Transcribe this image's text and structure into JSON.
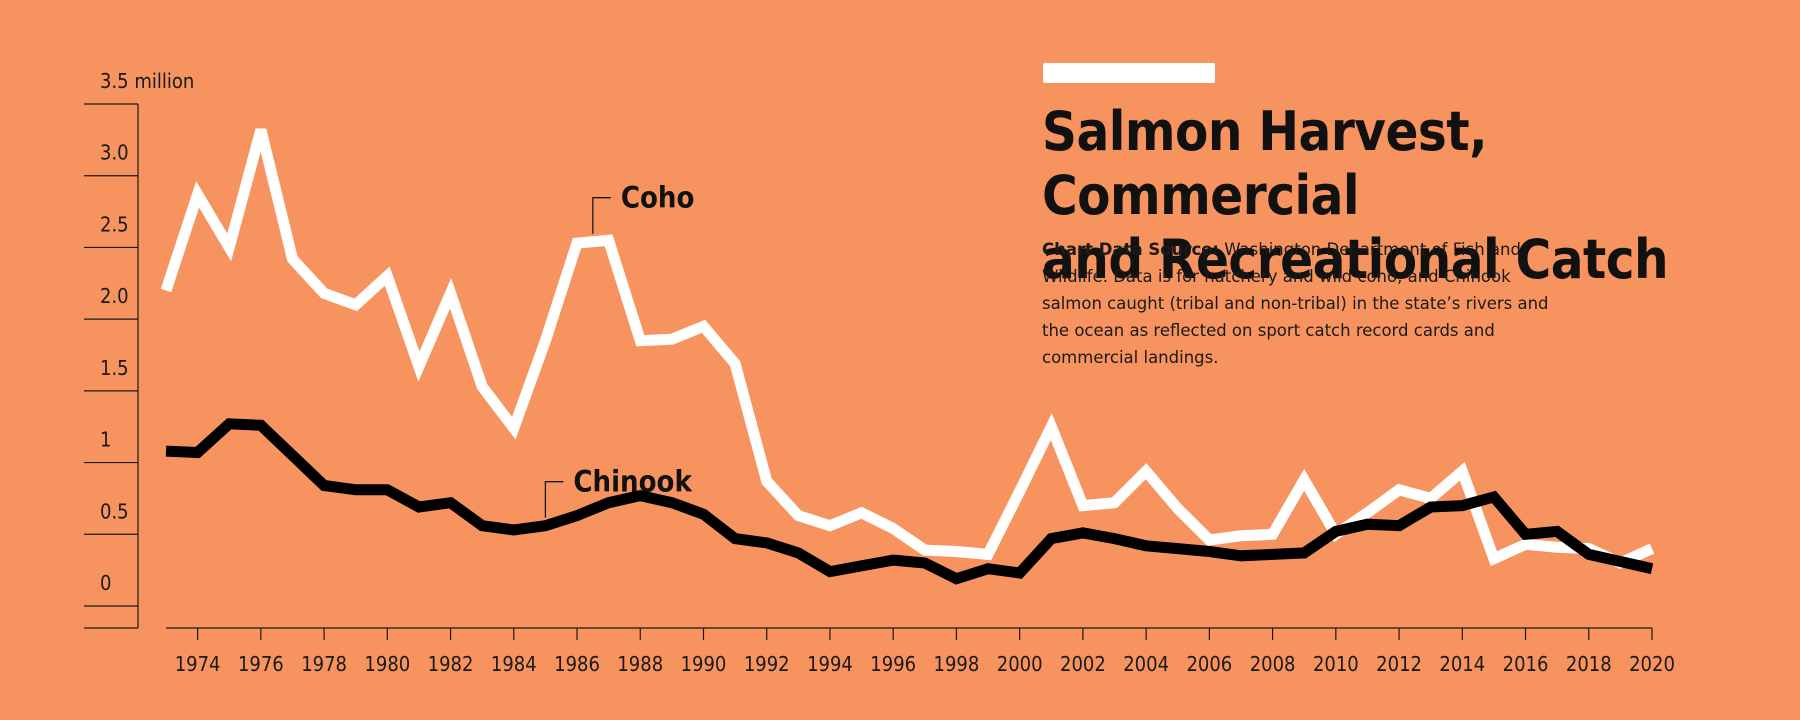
{
  "header": {
    "title_line1": "Salmon Harvest, Commercial",
    "title_line2": "and Recreational Catch",
    "source_label": "Chart Data Source:",
    "source_text": "Washington Department of Fish and Wildlife. Data is for hatchery and wild coho, and Chinook salmon caught (tribal and non-tribal) in the state’s rivers and the ocean as reflected on sport catch record cards and commercial landings."
  },
  "colors": {
    "background": "#F7935E",
    "coho": "#FFFFFF",
    "chinook": "#000000",
    "title_bar": "#FFFFFF"
  },
  "chart_data": {
    "type": "line",
    "title": "Salmon Harvest, Commercial and Recreational Catch",
    "ylim": [
      0,
      3.5
    ],
    "y_ticks": [
      {
        "value": 0,
        "label": "0"
      },
      {
        "value": 0.5,
        "label": "0.5"
      },
      {
        "value": 1,
        "label": "1"
      },
      {
        "value": 1.5,
        "label": "1.5"
      },
      {
        "value": 2,
        "label": "2.0"
      },
      {
        "value": 2.5,
        "label": "2.5"
      },
      {
        "value": 3,
        "label": "3.0"
      },
      {
        "value": 3.5,
        "label": "3.5 million"
      }
    ],
    "xlim": [
      1973,
      2020
    ],
    "x_ticks": [
      1974,
      1976,
      1978,
      1980,
      1982,
      1984,
      1986,
      1988,
      1990,
      1992,
      1994,
      1996,
      1998,
      2000,
      2002,
      2004,
      2006,
      2008,
      2010,
      2012,
      2014,
      2016,
      2018,
      2020
    ],
    "x": [
      1973,
      1974,
      1975,
      1976,
      1977,
      1978,
      1979,
      1980,
      1981,
      1982,
      1983,
      1984,
      1985,
      1986,
      1987,
      1988,
      1989,
      1990,
      1991,
      1992,
      1993,
      1994,
      1995,
      1996,
      1997,
      1998,
      1999,
      2000,
      2001,
      2002,
      2003,
      2004,
      2005,
      2006,
      2007,
      2008,
      2009,
      2010,
      2011,
      2012,
      2013,
      2014,
      2015,
      2016,
      2017,
      2018,
      2019,
      2020
    ],
    "series": [
      {
        "name": "Coho",
        "color": "#FFFFFF",
        "label_at": 1986.5,
        "values": [
          2.2,
          2.87,
          2.5,
          3.32,
          2.42,
          2.18,
          2.1,
          2.3,
          1.67,
          2.18,
          1.53,
          1.24,
          1.85,
          2.53,
          2.55,
          1.85,
          1.86,
          1.95,
          1.69,
          0.87,
          0.63,
          0.56,
          0.65,
          0.54,
          0.39,
          0.38,
          0.36,
          0.8,
          1.25,
          0.7,
          0.72,
          0.94,
          0.68,
          0.46,
          0.49,
          0.5,
          0.88,
          0.5,
          0.65,
          0.81,
          0.75,
          0.94,
          0.33,
          0.43,
          0.41,
          0.4,
          0.3,
          0.4
        ]
      },
      {
        "name": "Chinook",
        "color": "#000000",
        "label_at": 1985,
        "values": [
          1.08,
          1.07,
          1.27,
          1.26,
          1.05,
          0.84,
          0.81,
          0.81,
          0.69,
          0.72,
          0.56,
          0.53,
          0.56,
          0.63,
          0.72,
          0.77,
          0.72,
          0.64,
          0.47,
          0.44,
          0.37,
          0.24,
          0.28,
          0.32,
          0.3,
          0.19,
          0.26,
          0.23,
          0.47,
          0.51,
          0.47,
          0.42,
          0.4,
          0.38,
          0.35,
          0.36,
          0.37,
          0.52,
          0.57,
          0.56,
          0.69,
          0.7,
          0.76,
          0.5,
          0.52,
          0.36,
          0.31,
          0.26
        ]
      }
    ],
    "grid": false,
    "legend": "none"
  }
}
